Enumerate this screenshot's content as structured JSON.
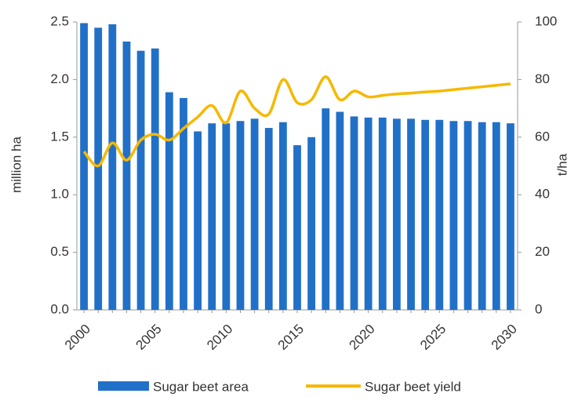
{
  "chart_data": {
    "type": "bar_line",
    "categories": [
      "2000",
      null,
      null,
      null,
      null,
      "2005",
      null,
      null,
      null,
      null,
      "2010",
      null,
      null,
      null,
      null,
      "2015",
      null,
      null,
      null,
      null,
      "2020",
      null,
      null,
      null,
      null,
      "2025",
      null,
      null,
      null,
      null,
      "2030"
    ],
    "series": [
      {
        "name": "Sugar beet area",
        "type": "bar",
        "color": "#2170c8",
        "axis": "y",
        "values": [
          2.49,
          2.45,
          2.48,
          2.33,
          2.25,
          2.27,
          1.89,
          1.84,
          1.55,
          1.62,
          1.62,
          1.64,
          1.66,
          1.58,
          1.63,
          1.43,
          1.5,
          1.75,
          1.72,
          1.68,
          1.67,
          1.67,
          1.66,
          1.66,
          1.65,
          1.65,
          1.64,
          1.64,
          1.63,
          1.63,
          1.62
        ]
      },
      {
        "name": "Sugar beet yield",
        "type": "line",
        "color": "#f6b800",
        "axis": "y2",
        "values": [
          55,
          50,
          58,
          52,
          59,
          61,
          59,
          63,
          67,
          71,
          65,
          76,
          70,
          68,
          80,
          72,
          73,
          81,
          73,
          76,
          74,
          74.5,
          75,
          75.3,
          75.7,
          76,
          76.5,
          77,
          77.5,
          78,
          78.5
        ]
      }
    ],
    "ylabel": "million ha",
    "y2label": "t/ha",
    "ylim": [
      0,
      2.5
    ],
    "yticks": [
      {
        "value": 0,
        "label": "0.0"
      },
      0.5,
      {
        "value": 1,
        "label": "1.0"
      },
      1.5,
      {
        "value": 2,
        "label": "2.0"
      },
      2.5
    ],
    "y2lim": [
      0,
      100
    ],
    "y2ticks": [
      0,
      20,
      40,
      60,
      80,
      100
    ],
    "legend": "bottom",
    "grid": false
  }
}
